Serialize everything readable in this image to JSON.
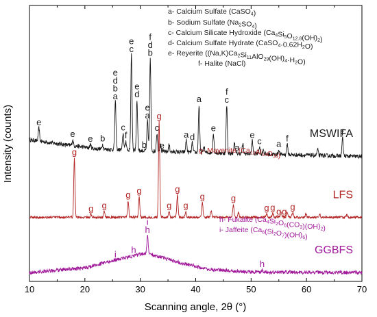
{
  "chart_data": {
    "type": "line",
    "xlabel": "Scanning angle, 2θ (°)",
    "ylabel": "Intensity (counts)",
    "xlim": [
      10,
      70
    ],
    "x_ticks": [
      10,
      20,
      30,
      40,
      50,
      60,
      70
    ],
    "y_ticks_shown": false,
    "series": [
      {
        "name": "MSWIFA",
        "color": "#1a1a1a",
        "baseline": 2.05,
        "noise": 0.035,
        "rise": [
          [
            10,
            0.2
          ],
          [
            22,
            0.05
          ],
          [
            35,
            0.0
          ],
          [
            70,
            -0.08
          ]
        ],
        "peaks": [
          [
            11.7,
            0.22
          ],
          [
            17.8,
            0.1
          ],
          [
            21.0,
            0.06
          ],
          [
            23.2,
            0.08
          ],
          [
            25.5,
            0.8
          ],
          [
            26.9,
            0.28
          ],
          [
            27.4,
            0.15
          ],
          [
            28.4,
            1.6
          ],
          [
            29.4,
            0.85
          ],
          [
            31.3,
            0.5
          ],
          [
            31.8,
            1.55
          ],
          [
            33.0,
            0.3
          ],
          [
            33.6,
            0.15
          ],
          [
            35.2,
            0.12
          ],
          [
            38.3,
            0.2
          ],
          [
            39.4,
            0.16
          ],
          [
            40.6,
            0.8
          ],
          [
            41.5,
            0.1
          ],
          [
            43.2,
            0.32
          ],
          [
            45.6,
            0.8
          ],
          [
            47.0,
            0.18
          ],
          [
            48.5,
            0.16
          ],
          [
            50.2,
            0.22
          ],
          [
            51.5,
            0.12
          ],
          [
            52.2,
            0.08
          ],
          [
            55.0,
            0.08
          ],
          [
            56.5,
            0.18
          ],
          [
            62.0,
            0.1
          ],
          [
            66.5,
            0.3
          ]
        ]
      },
      {
        "name": "LFS",
        "color": "#b22222",
        "baseline": 0.95,
        "noise": 0.02,
        "rise": [
          [
            10,
            0.0
          ],
          [
            70,
            0.0
          ]
        ],
        "peaks": [
          [
            18.1,
            1.0
          ],
          [
            21.1,
            0.05
          ],
          [
            23.5,
            0.1
          ],
          [
            27.8,
            0.28
          ],
          [
            29.8,
            0.35
          ],
          [
            33.4,
            1.6
          ],
          [
            35.2,
            0.1
          ],
          [
            36.7,
            0.38
          ],
          [
            38.2,
            0.1
          ],
          [
            41.2,
            0.25
          ],
          [
            42.8,
            0.12
          ],
          [
            46.8,
            0.22
          ],
          [
            47.7,
            0.08
          ],
          [
            52.8,
            0.06
          ],
          [
            53.9,
            0.07
          ],
          [
            55.4,
            0.1
          ],
          [
            56.5,
            0.1
          ],
          [
            57.5,
            0.08
          ],
          [
            59.9,
            0.06
          ],
          [
            62.4,
            0.05
          ],
          [
            67.3,
            0.04
          ]
        ]
      },
      {
        "name": "GGBFS",
        "color": "#a0189a",
        "baseline": 0.02,
        "noise": 0.03,
        "rise": [
          [
            10,
            0.0
          ],
          [
            20,
            0.08
          ],
          [
            25,
            0.2
          ],
          [
            31,
            0.33
          ],
          [
            36,
            0.2
          ],
          [
            42,
            0.06
          ],
          [
            50,
            0.01
          ],
          [
            70,
            0.0
          ]
        ],
        "peaks": [
          [
            31.3,
            0.3
          ],
          [
            52.0,
            0.04
          ]
        ]
      }
    ],
    "peak_labels": [
      {
        "series": "MSWIFA",
        "x": 11.7,
        "stack": [
          "e"
        ]
      },
      {
        "series": "MSWIFA",
        "x": 17.8,
        "stack": [
          "e"
        ]
      },
      {
        "series": "MSWIFA",
        "x": 21.0,
        "stack": [
          "e"
        ]
      },
      {
        "series": "MSWIFA",
        "x": 23.2,
        "stack": [
          "b"
        ]
      },
      {
        "series": "MSWIFA",
        "x": 25.5,
        "stack": [
          "e",
          "d",
          "b",
          "a"
        ]
      },
      {
        "series": "MSWIFA",
        "x": 26.9,
        "stack": [
          "c"
        ]
      },
      {
        "series": "MSWIFA",
        "x": 27.4,
        "stack": [
          "f"
        ]
      },
      {
        "series": "MSWIFA",
        "x": 28.4,
        "stack": [
          "e",
          "c"
        ]
      },
      {
        "series": "MSWIFA",
        "x": 29.4,
        "stack": [
          "e",
          "d"
        ]
      },
      {
        "series": "MSWIFA",
        "x": 30.7,
        "stack": [
          "b"
        ]
      },
      {
        "series": "MSWIFA",
        "x": 31.3,
        "stack": [
          "e",
          "a"
        ]
      },
      {
        "series": "MSWIFA",
        "x": 31.8,
        "stack": [
          "f",
          "d",
          "b"
        ]
      },
      {
        "series": "MSWIFA",
        "x": 33.0,
        "stack": [
          "c"
        ]
      },
      {
        "series": "MSWIFA",
        "x": 33.9,
        "stack": [
          "e"
        ]
      },
      {
        "series": "MSWIFA",
        "x": 38.3,
        "stack": [
          "a"
        ]
      },
      {
        "series": "MSWIFA",
        "x": 39.4,
        "stack": [
          "d"
        ]
      },
      {
        "series": "MSWIFA",
        "x": 40.6,
        "stack": [
          "a"
        ]
      },
      {
        "series": "MSWIFA",
        "x": 43.2,
        "stack": [
          "e"
        ]
      },
      {
        "series": "MSWIFA",
        "x": 45.6,
        "stack": [
          "f",
          "c"
        ]
      },
      {
        "series": "MSWIFA",
        "x": 47.5,
        "stack": [
          "a"
        ]
      },
      {
        "series": "MSWIFA",
        "x": 50.2,
        "stack": [
          "e"
        ]
      },
      {
        "series": "MSWIFA",
        "x": 51.5,
        "stack": [
          "c"
        ]
      },
      {
        "series": "MSWIFA",
        "x": 55.0,
        "stack": [
          "a"
        ]
      },
      {
        "series": "MSWIFA",
        "x": 56.5,
        "stack": [
          "f"
        ]
      },
      {
        "series": "MSWIFA",
        "x": 66.5,
        "stack": [
          "f"
        ]
      },
      {
        "series": "LFS",
        "x": 18.1,
        "stack": [
          "g"
        ]
      },
      {
        "series": "LFS",
        "x": 21.1,
        "stack": [
          "g"
        ]
      },
      {
        "series": "LFS",
        "x": 23.5,
        "stack": [
          "g"
        ]
      },
      {
        "series": "LFS",
        "x": 27.8,
        "stack": [
          "g"
        ]
      },
      {
        "series": "LFS",
        "x": 29.8,
        "stack": [
          "g"
        ]
      },
      {
        "series": "LFS",
        "x": 33.4,
        "stack": [
          "g"
        ]
      },
      {
        "series": "LFS",
        "x": 35.2,
        "stack": [
          "g"
        ]
      },
      {
        "series": "LFS",
        "x": 36.7,
        "stack": [
          "g"
        ]
      },
      {
        "series": "LFS",
        "x": 38.2,
        "stack": [
          "g"
        ]
      },
      {
        "series": "LFS",
        "x": 41.2,
        "stack": [
          "g"
        ]
      },
      {
        "series": "LFS",
        "x": 46.8,
        "stack": [
          "g"
        ]
      },
      {
        "series": "LFS",
        "x": 52.8,
        "stack": [
          "g"
        ]
      },
      {
        "series": "LFS",
        "x": 53.9,
        "stack": [
          "g"
        ]
      },
      {
        "series": "LFS",
        "x": 55.0,
        "stack": [
          "g"
        ]
      },
      {
        "series": "LFS",
        "x": 56.0,
        "stack": [
          "g"
        ]
      },
      {
        "series": "LFS",
        "x": 57.5,
        "stack": [
          "g"
        ]
      },
      {
        "series": "GGBFS",
        "x": 25.5,
        "stack": [
          "i"
        ]
      },
      {
        "series": "GGBFS",
        "x": 28.8,
        "stack": [
          "h"
        ]
      },
      {
        "series": "GGBFS",
        "x": 31.3,
        "stack": [
          "i",
          "h"
        ]
      },
      {
        "series": "GGBFS",
        "x": 52.0,
        "stack": [
          "h"
        ]
      }
    ],
    "phase_legend": [
      {
        "color": "#1a1a1a",
        "parts": [
          [
            "a- Calcium Sulfate (CaSO",
            ""
          ],
          [
            "4",
            "sub"
          ],
          [
            ")",
            ""
          ]
        ]
      },
      {
        "color": "#1a1a1a",
        "parts": [
          [
            "b- Sodium Sulfate (Na",
            ""
          ],
          [
            "2",
            "sub"
          ],
          [
            "SO",
            ""
          ],
          [
            "4",
            "sub"
          ],
          [
            ")",
            ""
          ]
        ]
      },
      {
        "color": "#1a1a1a",
        "parts": [
          [
            "c- Calcium Silicate Hydroxide (Ca",
            ""
          ],
          [
            "4",
            "sub"
          ],
          [
            "Si",
            ""
          ],
          [
            "5",
            "sub"
          ],
          [
            "O",
            ""
          ],
          [
            "12.8",
            "sub"
          ],
          [
            "(OH)",
            ""
          ],
          [
            "2",
            "sub"
          ],
          [
            ")",
            ""
          ]
        ]
      },
      {
        "color": "#1a1a1a",
        "parts": [
          [
            "d- Calcium Sulfate Hydrate (CaSO",
            ""
          ],
          [
            "4",
            "sub"
          ],
          [
            "·0.62H",
            ""
          ],
          [
            "2",
            "sub"
          ],
          [
            "O)",
            ""
          ]
        ]
      },
      {
        "color": "#1a1a1a",
        "parts": [
          [
            "e- Reyerite ((Na,K)Ca",
            ""
          ],
          [
            "2",
            "sub"
          ],
          [
            "Si",
            ""
          ],
          [
            "11",
            "sub"
          ],
          [
            "AlO",
            ""
          ],
          [
            "29",
            "sub"
          ],
          [
            "(OH)",
            ""
          ],
          [
            "4",
            "sub"
          ],
          [
            "·H",
            ""
          ],
          [
            "2",
            "sub"
          ],
          [
            "O)",
            ""
          ]
        ]
      },
      {
        "color": "#1a1a1a",
        "parts": [
          [
            "f- Halite (NaCl)",
            ""
          ]
        ]
      },
      {
        "color": "#b22222",
        "parts": [
          [
            "g- Mayenite (Ca",
            ""
          ],
          [
            "12",
            "sub"
          ],
          [
            "Al",
            ""
          ],
          [
            "14",
            "sub"
          ],
          [
            "O",
            ""
          ],
          [
            "33",
            "sub"
          ],
          [
            ")",
            ""
          ]
        ]
      },
      {
        "color": "#a0189a",
        "parts": [
          [
            "h- Fukalite (Ca",
            ""
          ],
          [
            "4",
            "sub"
          ],
          [
            "Si",
            ""
          ],
          [
            "2",
            "sub"
          ],
          [
            "O",
            ""
          ],
          [
            "6",
            "sub"
          ],
          [
            "(CO",
            ""
          ],
          [
            "3",
            "sub"
          ],
          [
            ")(OH)",
            ""
          ],
          [
            "2",
            "sub"
          ],
          [
            ")",
            ""
          ]
        ]
      },
      {
        "color": "#a0189a",
        "parts": [
          [
            "i- Jaffeite (Ca",
            ""
          ],
          [
            "6",
            "sub"
          ],
          [
            "(Si",
            ""
          ],
          [
            "2",
            "sub"
          ],
          [
            "O",
            ""
          ],
          [
            "7",
            "sub"
          ],
          [
            ")(OH)",
            ""
          ],
          [
            "6",
            "sub"
          ],
          [
            ")",
            ""
          ]
        ]
      }
    ]
  }
}
